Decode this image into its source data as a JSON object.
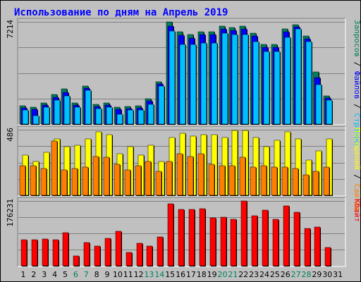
{
  "title": "Использование по дням на Апрель 2019",
  "colors": {
    "background": "#c0c0c0",
    "panel": "#c0c0c0",
    "title": "#0000ff",
    "hits": "#00805c",
    "files": "#0000ff",
    "pages": "#00c0ff",
    "visits": "#ffff00",
    "sites": "#ff8000",
    "kbytes": "#ff0000",
    "weekend_label": "#00805c",
    "weekday_label": "#000000"
  },
  "chart_data": [
    {
      "type": "bar",
      "panel": "top",
      "max_label": "7214",
      "ylim": [
        0,
        7214
      ],
      "legend_vertical": [
        {
          "text": "Запросов",
          "color": "#00805c"
        },
        {
          "text": " / ",
          "color": "#000000"
        },
        {
          "text": "Файлов",
          "color": "#0000ff"
        },
        {
          "text": " / ",
          "color": "#000000"
        },
        {
          "text": "Страниц",
          "color": "#00c0ff"
        }
      ],
      "categories": [
        "1",
        "2",
        "3",
        "4",
        "5",
        "6",
        "7",
        "8",
        "9",
        "10",
        "11",
        "12",
        "13",
        "14",
        "15",
        "16",
        "17",
        "18",
        "19",
        "20",
        "21",
        "22",
        "23",
        "24",
        "25",
        "26",
        "27",
        "28",
        "29",
        "30",
        "31"
      ],
      "series": [
        {
          "name": "Запросов",
          "color": "#00805c",
          "values": [
            1300,
            1200,
            1500,
            2100,
            2500,
            1500,
            2700,
            1400,
            1500,
            1200,
            1250,
            1300,
            1800,
            3000,
            7214,
            6500,
            6300,
            6500,
            6500,
            6900,
            6800,
            6900,
            6400,
            5600,
            5600,
            6700,
            7000,
            6200,
            3700,
            2000,
            0
          ]
        },
        {
          "name": "Файлов",
          "color": "#0000ff",
          "values": [
            1150,
            1050,
            1350,
            1900,
            2250,
            1350,
            2550,
            1250,
            1350,
            1050,
            1100,
            1150,
            1650,
            2850,
            6900,
            6250,
            6050,
            6300,
            6300,
            6700,
            6600,
            6700,
            6200,
            5400,
            5400,
            6500,
            6850,
            6000,
            3300,
            1850,
            0
          ]
        },
        {
          "name": "Страниц",
          "color": "#00c0ff",
          "values": [
            1000,
            600,
            1200,
            1700,
            2000,
            1200,
            2400,
            1100,
            1200,
            700,
            1000,
            1000,
            1400,
            2700,
            6550,
            5600,
            5600,
            5700,
            5700,
            6400,
            6300,
            6300,
            5800,
            5100,
            5100,
            6100,
            6700,
            5800,
            2800,
            1700,
            0
          ]
        }
      ]
    },
    {
      "type": "bar",
      "panel": "middle",
      "max_label": "486",
      "ylim": [
        0,
        486
      ],
      "legend_vertical": [
        {
          "text": "Посещений",
          "color": "#ffff00"
        },
        {
          "text": " / ",
          "color": "#000000"
        },
        {
          "text": "Сайтов",
          "color": "#ff8000"
        }
      ],
      "categories": [
        "1",
        "2",
        "3",
        "4",
        "5",
        "6",
        "7",
        "8",
        "9",
        "10",
        "11",
        "12",
        "13",
        "14",
        "15",
        "16",
        "17",
        "18",
        "19",
        "20",
        "21",
        "22",
        "23",
        "24",
        "25",
        "26",
        "27",
        "28",
        "29",
        "30",
        "31"
      ],
      "series": [
        {
          "name": "Посещений",
          "color": "#ffff00",
          "values": [
            300,
            250,
            320,
            420,
            360,
            370,
            420,
            470,
            450,
            310,
            360,
            300,
            370,
            250,
            430,
            460,
            440,
            450,
            450,
            430,
            480,
            480,
            430,
            360,
            410,
            470,
            420,
            260,
            330,
            420,
            0
          ]
        },
        {
          "name": "Сайтов",
          "color": "#ff8000",
          "values": [
            220,
            220,
            200,
            400,
            190,
            200,
            210,
            290,
            280,
            230,
            190,
            220,
            250,
            180,
            250,
            310,
            290,
            310,
            230,
            220,
            220,
            280,
            210,
            220,
            210,
            210,
            200,
            150,
            180,
            210,
            0
          ]
        }
      ]
    },
    {
      "type": "bar",
      "panel": "bottom",
      "max_label": "176231",
      "ylim": [
        0,
        176231
      ],
      "legend_vertical": [
        {
          "text": "Кбайт",
          "color": "#ff0000"
        }
      ],
      "categories": [
        "1",
        "2",
        "3",
        "4",
        "5",
        "6",
        "7",
        "8",
        "9",
        "10",
        "11",
        "12",
        "13",
        "14",
        "15",
        "16",
        "17",
        "18",
        "19",
        "20",
        "21",
        "22",
        "23",
        "24",
        "25",
        "26",
        "27",
        "28",
        "29",
        "30",
        "31"
      ],
      "series": [
        {
          "name": "Кбайт",
          "color": "#ff0000",
          "values": [
            70000,
            70000,
            72000,
            71000,
            90000,
            26000,
            64000,
            53000,
            74000,
            94000,
            36000,
            61000,
            54000,
            79000,
            168000,
            154000,
            153000,
            155000,
            130000,
            132000,
            127000,
            176231,
            136000,
            151000,
            127000,
            162000,
            146000,
            102000,
            105000,
            50000,
            0
          ]
        }
      ]
    }
  ],
  "day_labels": [
    {
      "text": "1",
      "weekend": false
    },
    {
      "text": "2",
      "weekend": false
    },
    {
      "text": "3",
      "weekend": false
    },
    {
      "text": "4",
      "weekend": false
    },
    {
      "text": "5",
      "weekend": false
    },
    {
      "text": "6",
      "weekend": true
    },
    {
      "text": "7",
      "weekend": true
    },
    {
      "text": "8",
      "weekend": false
    },
    {
      "text": "9",
      "weekend": false
    },
    {
      "text": "10",
      "weekend": false
    },
    {
      "text": "11",
      "weekend": false
    },
    {
      "text": "12",
      "weekend": false
    },
    {
      "text": "13",
      "weekend": true
    },
    {
      "text": "14",
      "weekend": true
    },
    {
      "text": "15",
      "weekend": false
    },
    {
      "text": "16",
      "weekend": false
    },
    {
      "text": "17",
      "weekend": false
    },
    {
      "text": "18",
      "weekend": false
    },
    {
      "text": "19",
      "weekend": false
    },
    {
      "text": "20",
      "weekend": true
    },
    {
      "text": "21",
      "weekend": true
    },
    {
      "text": "22",
      "weekend": false
    },
    {
      "text": "23",
      "weekend": false
    },
    {
      "text": "24",
      "weekend": false
    },
    {
      "text": "25",
      "weekend": false
    },
    {
      "text": "26",
      "weekend": false
    },
    {
      "text": "27",
      "weekend": true
    },
    {
      "text": "28",
      "weekend": true
    },
    {
      "text": "29",
      "weekend": false
    },
    {
      "text": "30",
      "weekend": false
    },
    {
      "text": "31",
      "weekend": false
    }
  ]
}
